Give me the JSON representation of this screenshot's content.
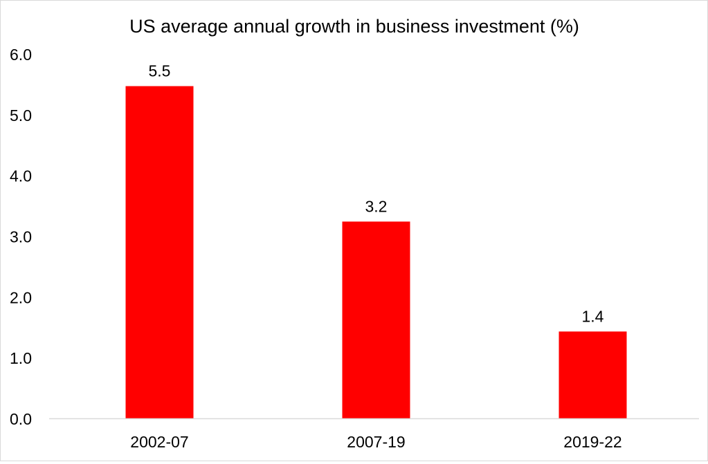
{
  "chart_data": {
    "type": "bar",
    "title": "US average annual growth in business investment (%)",
    "categories": [
      "2002-07",
      "2007-19",
      "2019-22"
    ],
    "values": [
      5.47,
      3.24,
      1.43
    ],
    "data_labels": [
      "5.5",
      "3.2",
      "1.4"
    ],
    "xlabel": "",
    "ylabel": "",
    "ylim": [
      0,
      6
    ],
    "yticks": [
      "0.0",
      "1.0",
      "2.0",
      "3.0",
      "4.0",
      "5.0",
      "6.0"
    ],
    "grid": false,
    "bar_color": "#ff0000",
    "axis_color": "#d9d9d9"
  }
}
